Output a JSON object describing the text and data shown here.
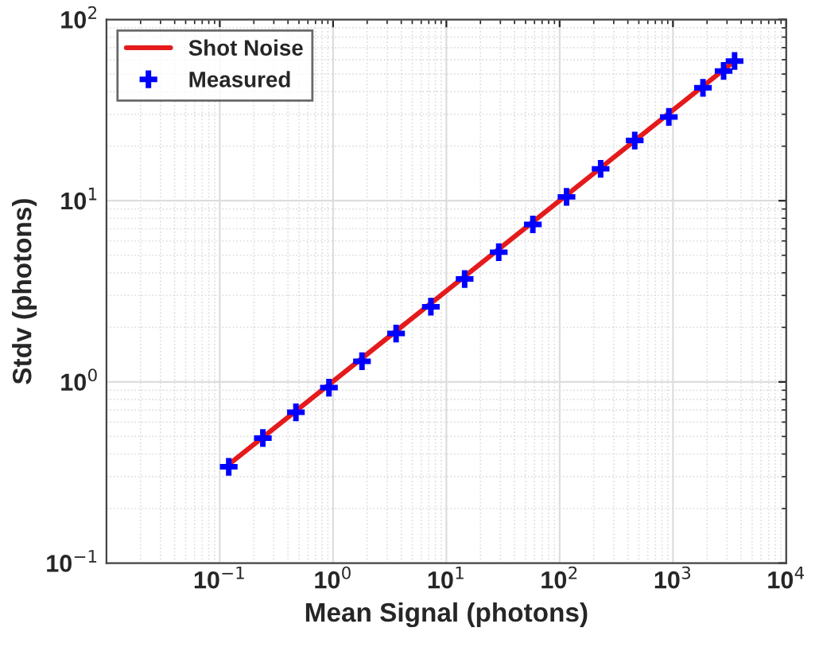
{
  "chart_data": {
    "type": "line",
    "xlabel": "Mean Signal (photons)",
    "ylabel": "Stdv (photons)",
    "log": "xy",
    "xlim": [
      0.01,
      10000
    ],
    "ylim": [
      0.1,
      100
    ],
    "xticks": [
      {
        "value": 0.1,
        "label": "10$^{−1}$"
      },
      {
        "value": 1,
        "label": "10$^{0}$"
      },
      {
        "value": 10,
        "label": "10$^{1}$"
      },
      {
        "value": 100,
        "label": "10$^{2}$"
      },
      {
        "value": 1000,
        "label": "10$^{3}$"
      },
      {
        "value": 10000,
        "label": "10$^{4}$"
      }
    ],
    "yticks": [
      {
        "value": 0.1,
        "label": "10$^{−1}$"
      },
      {
        "value": 1,
        "label": "10$^{0}$"
      },
      {
        "value": 10,
        "label": "10$^{1}$"
      },
      {
        "value": 100,
        "label": "10$^{2}$"
      }
    ],
    "grid": true,
    "legend": "top left",
    "series": [
      {
        "name": "Shot Noise",
        "type": "line",
        "color": "#e41a1c",
        "line_style": "solid",
        "marker": "none",
        "x": [
          0.12,
          3500
        ],
        "values": [
          0.35,
          59
        ]
      },
      {
        "name": "Measured",
        "type": "scatter",
        "color": "#0000ff",
        "marker": "cross",
        "x": [
          0.12,
          0.24,
          0.47,
          0.92,
          1.8,
          3.6,
          7.3,
          14.5,
          29,
          58,
          115,
          230,
          460,
          920,
          1840,
          2800,
          3500
        ],
        "values": [
          0.34,
          0.49,
          0.68,
          0.93,
          1.3,
          1.85,
          2.6,
          3.7,
          5.2,
          7.4,
          10.5,
          15,
          21.5,
          29,
          42,
          52,
          59
        ]
      }
    ]
  }
}
